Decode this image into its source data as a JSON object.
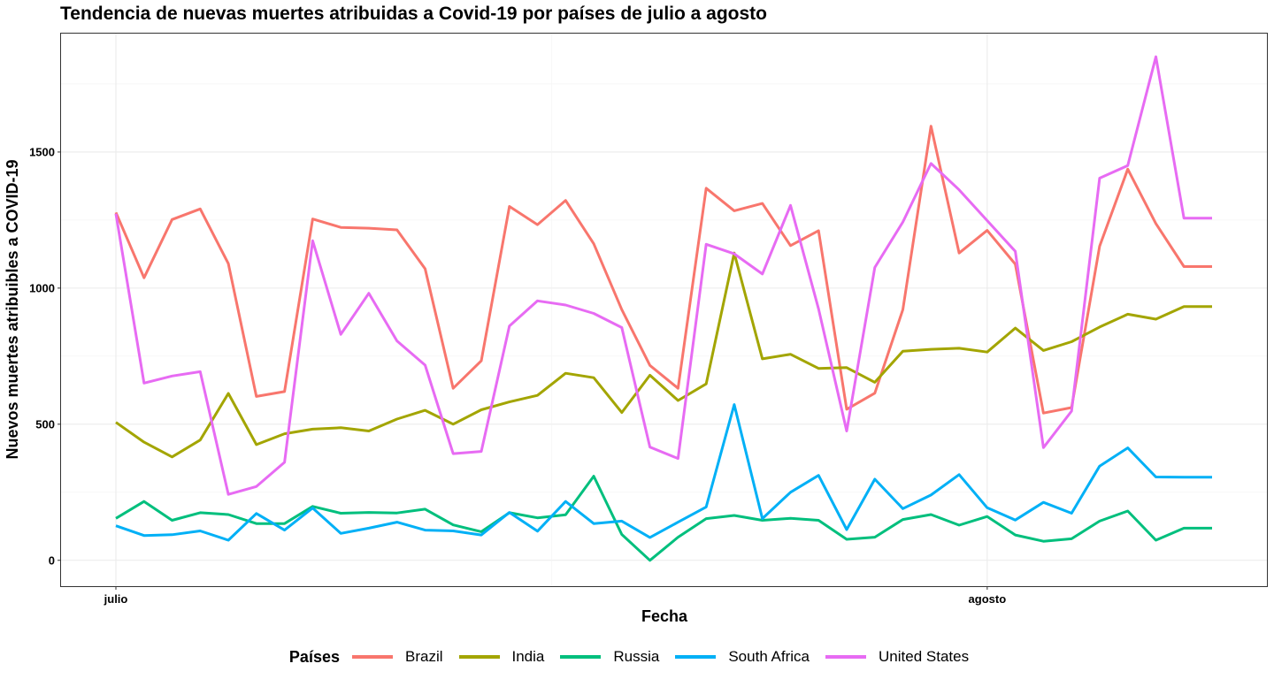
{
  "chart_data": {
    "type": "line",
    "title": "Tendencia de nuevas muertes atribuidas a Covid-19 por países de julio a agosto",
    "xlabel": "Fecha",
    "ylabel": "Nuevos muertes atribuibles a COVID-19",
    "legend_title": "Países",
    "legend_position": "bottom",
    "grid": true,
    "ylim": [
      -95,
      1935
    ],
    "y_ticks": [
      "0",
      "500",
      "1000",
      "1500"
    ],
    "x_ticks": [
      {
        "label": "julio",
        "date": "2020-07-01"
      },
      {
        "label": "agosto",
        "date": "2020-08-01"
      }
    ],
    "x": [
      "2020-07-01",
      "2020-07-02",
      "2020-07-03",
      "2020-07-04",
      "2020-07-05",
      "2020-07-06",
      "2020-07-07",
      "2020-07-08",
      "2020-07-09",
      "2020-07-10",
      "2020-07-11",
      "2020-07-12",
      "2020-07-13",
      "2020-07-14",
      "2020-07-15",
      "2020-07-16",
      "2020-07-17",
      "2020-07-18",
      "2020-07-19",
      "2020-07-20",
      "2020-07-21",
      "2020-07-22",
      "2020-07-23",
      "2020-07-24",
      "2020-07-25",
      "2020-07-26",
      "2020-07-27",
      "2020-07-28",
      "2020-07-29",
      "2020-07-30",
      "2020-07-31",
      "2020-08-01",
      "2020-08-02",
      "2020-08-03",
      "2020-08-04",
      "2020-08-05",
      "2020-08-06",
      "2020-08-07",
      "2020-08-08",
      "2020-08-09"
    ],
    "series": [
      {
        "name": "Brazil",
        "color": "#F8766D",
        "values": [
          1278,
          1038,
          1252,
          1291,
          1090,
          602,
          620,
          1254,
          1223,
          1220,
          1214,
          1071,
          632,
          733,
          1300,
          1233,
          1322,
          1163,
          921,
          716,
          632,
          1367,
          1284,
          1311,
          1156,
          1211,
          555,
          614,
          921,
          1595,
          1129,
          1212,
          1088,
          541,
          561,
          1154,
          1437,
          1237,
          1079,
          1079
        ]
      },
      {
        "name": "India",
        "color": "#A3A500",
        "values": [
          507,
          434,
          380,
          442,
          613,
          425,
          465,
          482,
          487,
          475,
          519,
          551,
          500,
          553,
          582,
          606,
          687,
          671,
          543,
          680,
          587,
          648,
          1129,
          740,
          757,
          705,
          708,
          654,
          768,
          775,
          779,
          765,
          853,
          771,
          803,
          857,
          904,
          886,
          932,
          932
        ]
      },
      {
        "name": "Russia",
        "color": "#00BF7D",
        "values": [
          154,
          216,
          147,
          175,
          168,
          135,
          135,
          198,
          173,
          176,
          174,
          188,
          130,
          105,
          175,
          156,
          167,
          309,
          95,
          0,
          85,
          153,
          165,
          147,
          154,
          147,
          77,
          85,
          150,
          168,
          129,
          161,
          93,
          70,
          79,
          144,
          181,
          74,
          118,
          118
        ]
      },
      {
        "name": "South Africa",
        "color": "#00B0F6",
        "values": [
          127,
          91,
          94,
          108,
          74,
          172,
          111,
          192,
          99,
          118,
          140,
          111,
          108,
          93,
          176,
          107,
          216,
          135,
          144,
          84,
          140,
          196,
          572,
          153,
          250,
          312,
          113,
          298,
          190,
          240,
          315,
          193,
          148,
          213,
          173,
          346,
          413,
          306,
          305,
          305
        ]
      },
      {
        "name": "United States",
        "color": "#E76BF3",
        "values": [
          1273,
          651,
          677,
          693,
          242,
          271,
          360,
          1174,
          830,
          981,
          806,
          717,
          392,
          400,
          861,
          953,
          938,
          907,
          855,
          416,
          374,
          1161,
          1126,
          1052,
          1304,
          924,
          475,
          1076,
          1243,
          1458,
          1361,
          1248,
          1135,
          414,
          548,
          1404,
          1450,
          1850,
          1257,
          1257
        ]
      }
    ]
  }
}
